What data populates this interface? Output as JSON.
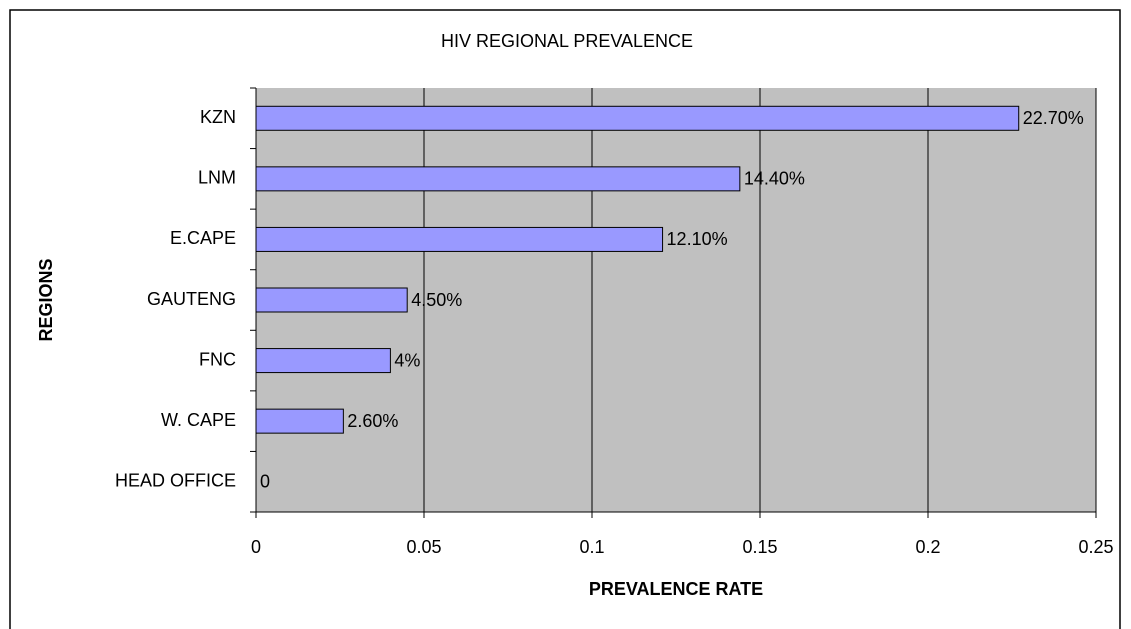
{
  "chart_data": {
    "type": "bar",
    "orientation": "horizontal",
    "title": "HIV REGIONAL PREVALENCE",
    "x_label": "PREVALENCE RATE",
    "y_label": "REGIONS",
    "categories": [
      "KZN",
      "LNM",
      "E.CAPE",
      "GAUTENG",
      "FNC",
      "W. CAPE",
      "HEAD OFFICE"
    ],
    "values": [
      0.227,
      0.144,
      0.121,
      0.045,
      0.04,
      0.026,
      0
    ],
    "value_labels": [
      "22.70%",
      "14.40%",
      "12.10%",
      "4.50%",
      "4%",
      "2.60%",
      "0"
    ],
    "color": "#9999ff",
    "xlim": [
      0,
      0.25
    ],
    "xticks": [
      0,
      0.05,
      0.1,
      0.15,
      0.2,
      0.25
    ],
    "grid": true
  }
}
